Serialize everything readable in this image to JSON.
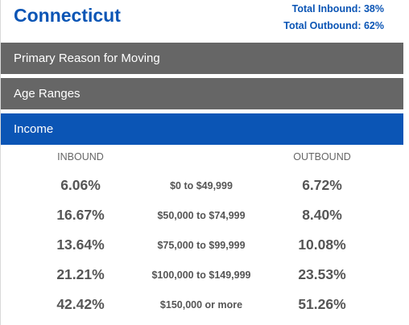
{
  "header": {
    "state": "Connecticut",
    "total_inbound": "Total Inbound: 38%",
    "total_outbound": "Total Outbound: 62%"
  },
  "tabs": [
    {
      "label": "Primary Reason for Moving",
      "active": false
    },
    {
      "label": "Age Ranges",
      "active": false
    },
    {
      "label": "Income",
      "active": true
    }
  ],
  "income": {
    "inbound_header": "INBOUND",
    "outbound_header": "OUTBOUND",
    "rows": [
      {
        "inbound": "6.06%",
        "range": "$0 to $49,999",
        "outbound": "6.72%"
      },
      {
        "inbound": "16.67%",
        "range": "$50,000 to $74,999",
        "outbound": "8.40%"
      },
      {
        "inbound": "13.64%",
        "range": "$75,000 to $99,999",
        "outbound": "10.08%"
      },
      {
        "inbound": "21.21%",
        "range": "$100,000 to $149,999",
        "outbound": "23.53%"
      },
      {
        "inbound": "42.42%",
        "range": "$150,000 or more",
        "outbound": "51.26%"
      }
    ]
  },
  "colors": {
    "accent": "#0b55b5",
    "tab_gray": "#666666",
    "text_gray": "#555555"
  }
}
